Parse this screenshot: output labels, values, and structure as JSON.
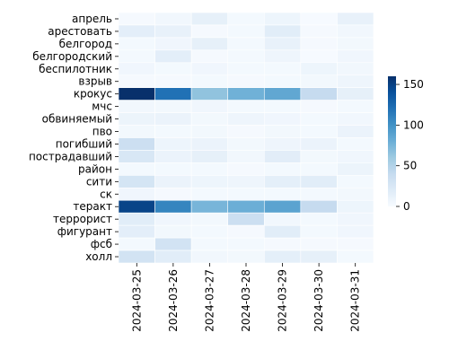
{
  "chart_data": {
    "type": "heatmap",
    "title": "",
    "xlabel": "",
    "ylabel": "",
    "x": [
      "2024-03-25",
      "2024-03-26",
      "2024-03-27",
      "2024-03-28",
      "2024-03-29",
      "2024-03-30",
      "2024-03-31"
    ],
    "y": [
      "апрель",
      "арестовать",
      "белгород",
      "белгородский",
      "беспилотник",
      "взрыв",
      "крокус",
      "мчс",
      "обвиняемый",
      "пво",
      "погибший",
      "пострадавший",
      "район",
      "сити",
      "ск",
      "теракт",
      "террорист",
      "фигурант",
      "фсб",
      "холл"
    ],
    "values": [
      [
        2,
        5,
        14,
        3,
        8,
        1,
        12
      ],
      [
        16,
        12,
        2,
        3,
        18,
        2,
        5
      ],
      [
        3,
        6,
        14,
        3,
        12,
        2,
        4
      ],
      [
        3,
        16,
        2,
        3,
        7,
        1,
        6
      ],
      [
        6,
        3,
        6,
        3,
        3,
        8,
        5
      ],
      [
        2,
        2,
        3,
        2,
        3,
        4,
        7
      ],
      [
        160,
        120,
        65,
        78,
        85,
        40,
        14
      ],
      [
        5,
        4,
        6,
        3,
        3,
        2,
        3
      ],
      [
        9,
        10,
        4,
        7,
        6,
        3,
        5
      ],
      [
        4,
        3,
        4,
        2,
        4,
        3,
        10
      ],
      [
        35,
        8,
        10,
        4,
        7,
        10,
        3
      ],
      [
        25,
        10,
        14,
        5,
        17,
        4,
        6
      ],
      [
        3,
        3,
        3,
        2,
        3,
        3,
        9
      ],
      [
        28,
        10,
        8,
        7,
        15,
        18,
        3
      ],
      [
        6,
        2,
        3,
        3,
        3,
        3,
        4
      ],
      [
        148,
        108,
        75,
        80,
        88,
        40,
        8
      ],
      [
        18,
        6,
        4,
        35,
        5,
        3,
        6
      ],
      [
        16,
        4,
        3,
        2,
        18,
        3,
        6
      ],
      [
        3,
        30,
        3,
        3,
        2,
        2,
        2
      ],
      [
        30,
        18,
        5,
        4,
        15,
        14,
        3
      ]
    ],
    "colorbar": {
      "min": 0,
      "max": 160,
      "ticks": [
        0,
        50,
        100,
        150
      ],
      "colormap": "Blues"
    },
    "colors": {
      "low": "#f7fbff",
      "mid": "#6baed6",
      "high": "#08306b",
      "grid": "#ffffff"
    }
  }
}
